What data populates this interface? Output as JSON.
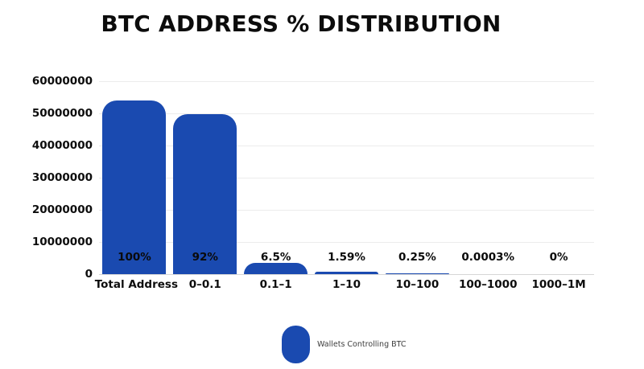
{
  "colors": {
    "bar": "#1a4ab0",
    "gridline": "#ececec",
    "baseline": "#d6d6d6",
    "text": "#0c0c0c",
    "legend_text": "#3d3d3d"
  },
  "chart_data": {
    "type": "bar",
    "title": "BTC ADDRESS % DISTRIBUTION",
    "categories": [
      "Total Address",
      "0–0.1",
      "0.1–1",
      "1–10",
      "10–100",
      "100–1000",
      "1000–1M"
    ],
    "values": [
      54000000,
      49680000,
      3510000,
      858600,
      135000,
      162,
      0
    ],
    "bar_labels": [
      "100%",
      "92%",
      "6.5%",
      "1.59%",
      "0.25%",
      "0.0003%",
      "0%"
    ],
    "xlabel": "",
    "ylabel": "",
    "ylim": [
      0,
      60000000
    ],
    "y_tick_labels": [
      "60000000",
      "50000000",
      "40000000",
      "30000000",
      "20000000",
      "10000000",
      "0"
    ],
    "grid": true,
    "legend": {
      "position": "bottom",
      "entries": [
        "Wallets Controlling BTC"
      ]
    }
  }
}
